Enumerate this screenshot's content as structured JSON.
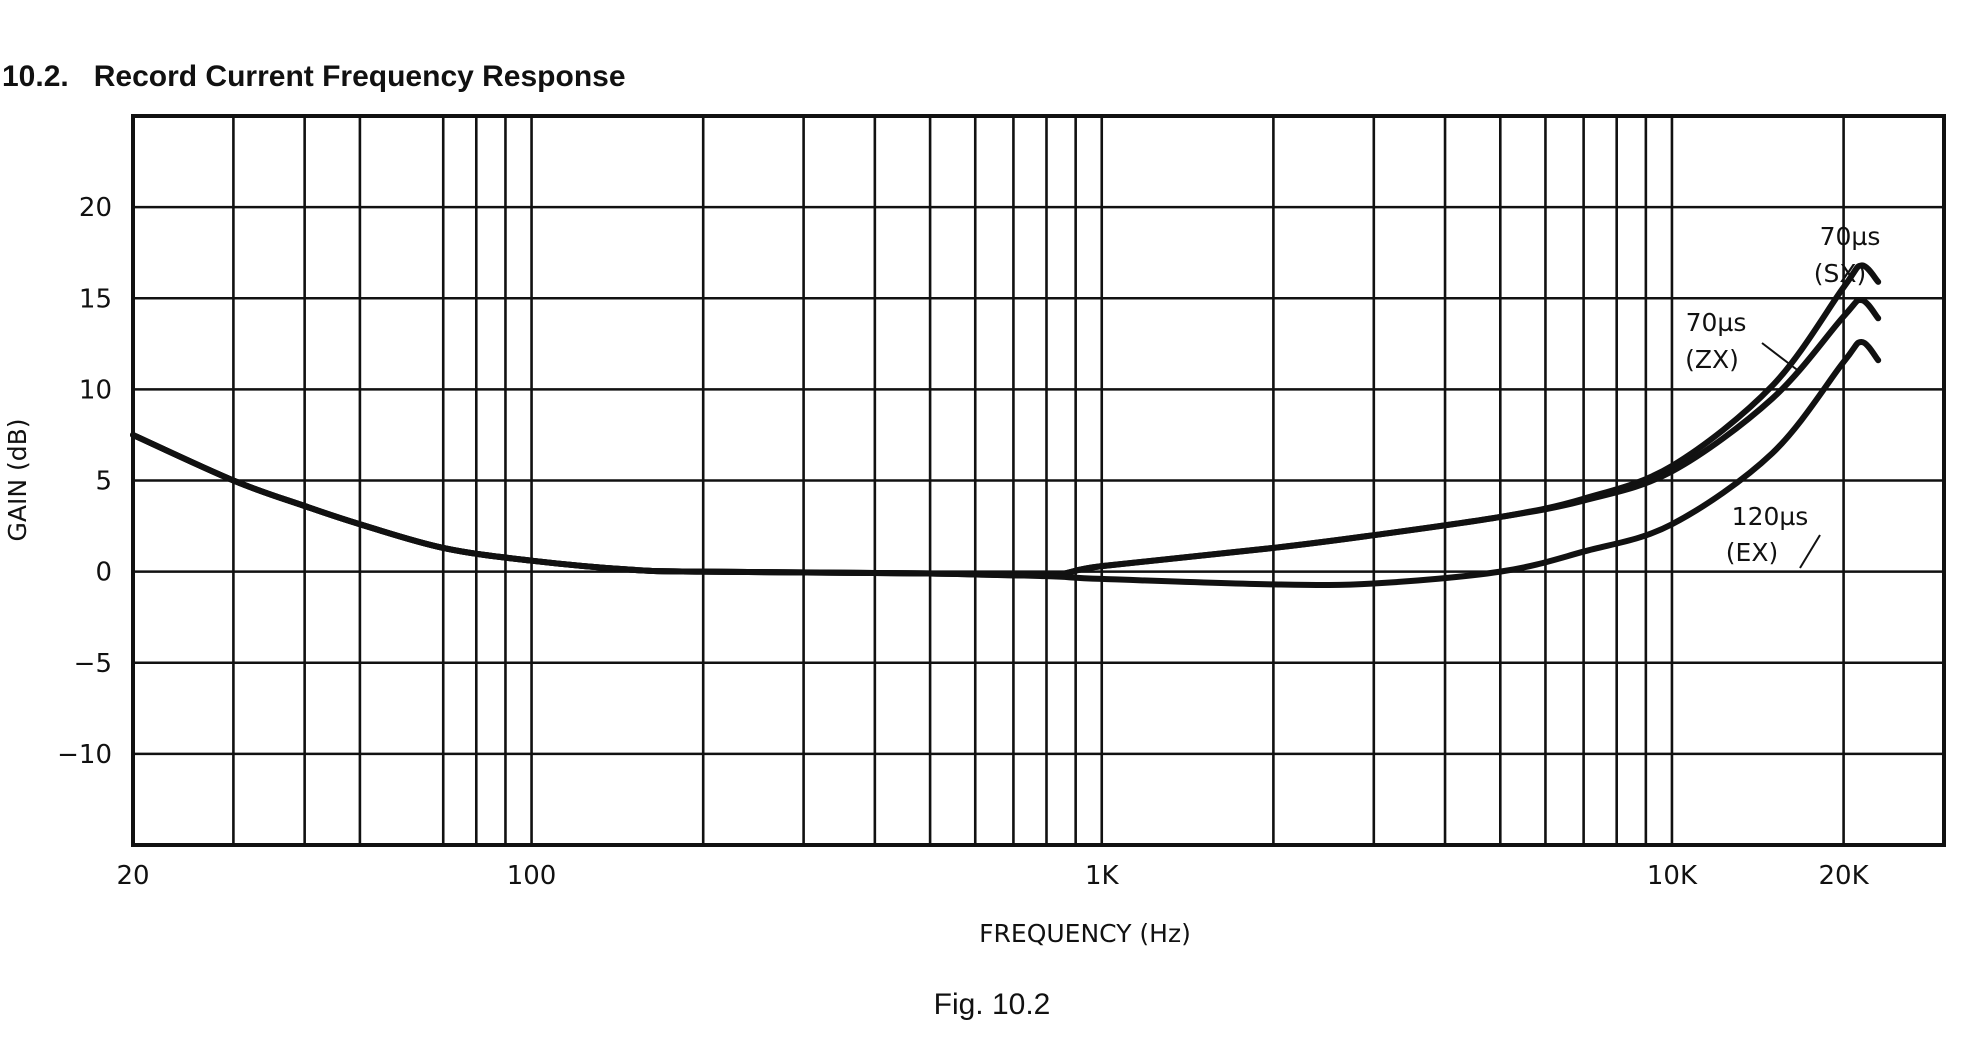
{
  "header": {
    "title": "10.2.   Record Current Frequency Response"
  },
  "caption": "Fig. 10.2",
  "chart_data": {
    "type": "line",
    "title": "10.2. Record Current Frequency Response",
    "xlabel": "FREQUENCY (Hz)",
    "ylabel": "GAIN (dB)",
    "xscale": "log",
    "xlim": [
      20,
      30000
    ],
    "ylim": [
      -15,
      25
    ],
    "grid": true,
    "x_ticks": [
      {
        "value": 20,
        "label": "20"
      },
      {
        "value": 100,
        "label": "100"
      },
      {
        "value": 1000,
        "label": "1K"
      },
      {
        "value": 10000,
        "label": "10K"
      },
      {
        "value": 20000,
        "label": "20K"
      }
    ],
    "y_ticks": [
      {
        "value": 20,
        "label": "20"
      },
      {
        "value": 15,
        "label": "15"
      },
      {
        "value": 10,
        "label": "10"
      },
      {
        "value": 5,
        "label": "5"
      },
      {
        "value": 0,
        "label": "0"
      },
      {
        "value": -5,
        "label": "−5"
      },
      {
        "value": -10,
        "label": "−10"
      }
    ],
    "x_gridlines": [
      30,
      40,
      50,
      70,
      80,
      90,
      100,
      200,
      300,
      400,
      500,
      600,
      700,
      800,
      900,
      1000,
      2000,
      3000,
      4000,
      5000,
      6000,
      7000,
      8000,
      9000,
      10000,
      20000
    ],
    "y_gridlines": [
      20,
      15,
      10,
      5,
      0,
      -5,
      -10
    ],
    "line_color": "#111111",
    "series": [
      {
        "name": "70µs (SX)",
        "label1": "70µs",
        "label2": "(SX)",
        "x": [
          20,
          30,
          40,
          50,
          70,
          100,
          150,
          200,
          500,
          800,
          1000,
          2000,
          3000,
          5000,
          7000,
          10000,
          15000,
          20000,
          21500,
          23000
        ],
        "y": [
          7.5,
          5,
          3.6,
          2.6,
          1.3,
          0.6,
          0.1,
          0,
          -0.1,
          -0.2,
          0.3,
          1.3,
          2,
          3,
          4,
          5.8,
          10.2,
          15.6,
          16.8,
          15.9
        ]
      },
      {
        "name": "70µs (ZX)",
        "label1": "70µs",
        "label2": "(ZX)",
        "x": [
          20,
          30,
          40,
          50,
          70,
          100,
          150,
          200,
          500,
          800,
          1000,
          2000,
          3000,
          5000,
          7000,
          10000,
          15000,
          20000,
          21500,
          23000
        ],
        "y": [
          7.5,
          5,
          3.6,
          2.6,
          1.3,
          0.6,
          0.1,
          0,
          -0.1,
          -0.2,
          0.3,
          1.3,
          2,
          3,
          3.9,
          5.5,
          9.5,
          14,
          14.9,
          13.9
        ]
      },
      {
        "name": "120µs (EX)",
        "label1": "120µs",
        "label2": "(EX)",
        "x": [
          20,
          30,
          40,
          50,
          70,
          100,
          150,
          200,
          500,
          800,
          1000,
          2000,
          3000,
          5000,
          7000,
          10000,
          15000,
          20000,
          21500,
          23000
        ],
        "y": [
          7.5,
          5,
          3.6,
          2.6,
          1.3,
          0.6,
          0.1,
          0,
          -0.1,
          -0.25,
          -0.4,
          -0.7,
          -0.65,
          0,
          1.1,
          2.6,
          6.5,
          11.5,
          12.6,
          11.6
        ]
      }
    ]
  }
}
